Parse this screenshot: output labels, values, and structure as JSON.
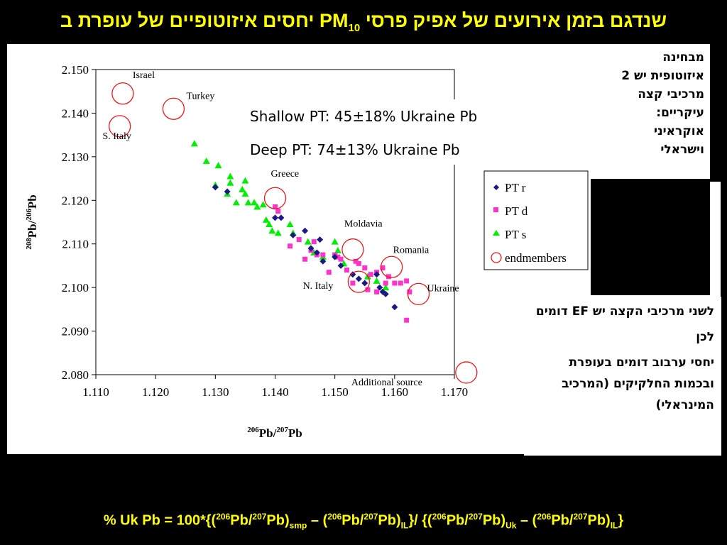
{
  "slide": {
    "title_main": "יחסים איזוטופיים של עופרת ב PM",
    "title_sub": "10",
    "title_rest": " שנדגם בזמן אירועים של אפיק פרסי"
  },
  "chart_data": {
    "type": "scatter",
    "xlabel_sup1": "206",
    "xlabel_mid": "Pb/",
    "xlabel_sup2": "207",
    "xlabel_end": "Pb",
    "ylabel_sup1": "208",
    "ylabel_mid": "Pb/",
    "ylabel_sup2": "206",
    "ylabel_end": "Pb",
    "xlim": [
      1.11,
      1.17
    ],
    "ylim": [
      2.08,
      2.15
    ],
    "x_ticks": [
      "1.110",
      "1.120",
      "1.130",
      "1.140",
      "1.150",
      "1.160",
      "1.170"
    ],
    "y_ticks": [
      "2.150",
      "2.140",
      "2.130",
      "2.120",
      "2.110",
      "2.100",
      "2.090",
      "2.080"
    ],
    "legend": [
      "PT r",
      "PT d",
      "PT s",
      "endmembers"
    ],
    "annotations": [
      "Shallow PT: 45±18% Ukraine Pb",
      "Deep PT: 74±13% Ukraine Pb"
    ],
    "colors": {
      "pt_r": "#1a1a80",
      "pt_d": "#ff33cc",
      "pt_s": "#00ee00",
      "endmember": "#e8191e"
    },
    "series": [
      {
        "name": "PT r",
        "points": [
          [
            1.13,
            2.123
          ],
          [
            1.132,
            2.122
          ],
          [
            1.14,
            2.116
          ],
          [
            1.141,
            2.116
          ],
          [
            1.143,
            2.112
          ],
          [
            1.145,
            2.113
          ],
          [
            1.146,
            2.109
          ],
          [
            1.147,
            2.108
          ],
          [
            1.1475,
            2.111
          ],
          [
            1.148,
            2.106
          ],
          [
            1.15,
            2.107
          ],
          [
            1.151,
            2.105
          ],
          [
            1.153,
            2.103
          ],
          [
            1.154,
            2.102
          ],
          [
            1.155,
            2.101
          ],
          [
            1.157,
            2.103
          ],
          [
            1.1575,
            2.1
          ],
          [
            1.158,
            2.099
          ],
          [
            1.1585,
            2.0985
          ],
          [
            1.16,
            2.0955
          ]
        ]
      },
      {
        "name": "PT d",
        "points": [
          [
            1.14,
            2.1185
          ],
          [
            1.1405,
            2.1175
          ],
          [
            1.1425,
            2.1095
          ],
          [
            1.144,
            2.111
          ],
          [
            1.145,
            2.1065
          ],
          [
            1.146,
            2.1085
          ],
          [
            1.1465,
            2.1105
          ],
          [
            1.147,
            2.1075
          ],
          [
            1.148,
            2.1075
          ],
          [
            1.149,
            2.1035
          ],
          [
            1.15,
            2.1075
          ],
          [
            1.1505,
            2.107
          ],
          [
            1.151,
            2.1065
          ],
          [
            1.152,
            2.104
          ],
          [
            1.153,
            2.101
          ],
          [
            1.1535,
            2.106
          ],
          [
            1.154,
            2.1055
          ],
          [
            1.155,
            2.1045
          ],
          [
            1.1555,
            2.0995
          ],
          [
            1.156,
            2.103
          ],
          [
            1.157,
            2.1035
          ],
          [
            1.158,
            2.1045
          ],
          [
            1.1585,
            2.101
          ],
          [
            1.159,
            2.1025
          ],
          [
            1.16,
            2.101
          ],
          [
            1.161,
            2.101
          ],
          [
            1.162,
            2.1015
          ],
          [
            1.1625,
            2.099
          ],
          [
            1.162,
            2.0925
          ],
          [
            1.157,
            2.099
          ]
        ]
      },
      {
        "name": "PT s",
        "points": [
          [
            1.1265,
            2.133
          ],
          [
            1.1285,
            2.129
          ],
          [
            1.1305,
            2.128
          ],
          [
            1.13,
            2.1235
          ],
          [
            1.132,
            2.1215
          ],
          [
            1.1325,
            2.1255
          ],
          [
            1.1325,
            2.124
          ],
          [
            1.1335,
            2.1195
          ],
          [
            1.1345,
            2.1225
          ],
          [
            1.135,
            2.1245
          ],
          [
            1.135,
            2.1215
          ],
          [
            1.1355,
            2.1195
          ],
          [
            1.1365,
            2.1195
          ],
          [
            1.137,
            2.1185
          ],
          [
            1.138,
            2.119
          ],
          [
            1.1385,
            2.1155
          ],
          [
            1.139,
            2.1145
          ],
          [
            1.1395,
            2.113
          ],
          [
            1.1405,
            2.1125
          ],
          [
            1.1425,
            2.1145
          ],
          [
            1.143,
            2.1125
          ],
          [
            1.1455,
            2.1105
          ],
          [
            1.1465,
            2.108
          ],
          [
            1.148,
            2.107
          ],
          [
            1.15,
            2.1105
          ],
          [
            1.1505,
            2.1085
          ],
          [
            1.1515,
            2.1055
          ],
          [
            1.1555,
            2.1025
          ],
          [
            1.157,
            2.1015
          ],
          [
            1.1585,
            2.1
          ]
        ]
      },
      {
        "name": "endmembers",
        "points": [
          {
            "label": "Israel",
            "x": 1.1145,
            "y": 2.1445
          },
          {
            "label": "Turkey",
            "x": 1.123,
            "y": 2.141
          },
          {
            "label": "S. Italy",
            "x": 1.114,
            "y": 2.137
          },
          {
            "label": "Greece",
            "x": 1.14,
            "y": 2.1205
          },
          {
            "label": "Moldavia",
            "x": 1.153,
            "y": 2.1087
          },
          {
            "label": "Romania",
            "x": 1.1595,
            "y": 2.1047
          },
          {
            "label": "N. Italy",
            "x": 1.154,
            "y": 2.1013
          },
          {
            "label": "Ukraine",
            "x": 1.164,
            "y": 2.0985
          },
          {
            "label": "Additional source",
            "x": 1.172,
            "y": 2.0805
          }
        ]
      }
    ]
  },
  "notes": {
    "top_lines": [
      "מבחינה",
      "איזוטופית יש 2",
      "מרכיבי קצה",
      "עיקריים:",
      "אוקראיני",
      "וישראלי"
    ],
    "bottom_1": "לשני מרכיבי הקצה יש EF דומים",
    "bottom_2": "לכן",
    "bottom_3": "יחסי ערבוב דומים בעופרת ובכמות החלקיקים (המרכיב המינראלי)"
  },
  "formula": {
    "p1": "% Uk Pb = 100*{(",
    "s1": "206",
    "p2": "Pb/",
    "s2": "207",
    "p3": "Pb)",
    "b1": "smp",
    "p4": " – (",
    "s3": "206",
    "p5": "Pb/",
    "s4": "207",
    "p6": "Pb)",
    "b2": "IL",
    "p7": "}/ {(",
    "s5": "206",
    "p8": "Pb/",
    "s6": "207",
    "p9": "Pb)",
    "b3": "Uk",
    "p10": " – (",
    "s7": "206",
    "p11": "Pb/",
    "s8": "207",
    "p12": "Pb)",
    "b4": "IL",
    "p13": "}"
  }
}
